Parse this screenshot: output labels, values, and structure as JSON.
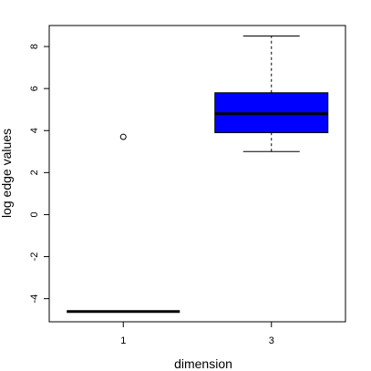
{
  "chart_data": {
    "type": "boxplot",
    "title": "",
    "xlabel": "dimension",
    "ylabel": "log edge values",
    "ylim": [
      -5.1,
      9.0
    ],
    "y_ticks": [
      -4,
      -2,
      0,
      2,
      4,
      6,
      8
    ],
    "y_tick_labels": [
      "-4",
      "-2",
      "0",
      "2",
      "4",
      "6",
      "8"
    ],
    "categories": [
      "1",
      "3"
    ],
    "grid": false,
    "legend": "none",
    "boxes": [
      {
        "category": "1",
        "fill_color": "#0000ff",
        "whisker_low": -4.61,
        "q1": -4.61,
        "median": -4.61,
        "q3": -4.61,
        "whisker_high": -4.61,
        "outliers": [
          3.7
        ]
      },
      {
        "category": "3",
        "fill_color": "#0000ff",
        "whisker_low": 3.0,
        "q1": 3.9,
        "median": 4.8,
        "q3": 5.8,
        "whisker_high": 8.5,
        "outliers": []
      }
    ]
  }
}
